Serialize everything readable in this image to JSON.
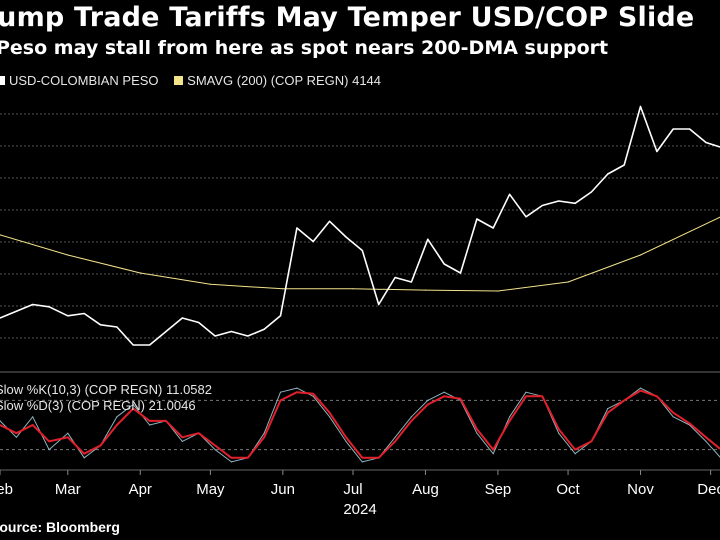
{
  "title": "Trump Trade Tariffs May Temper USD/COP Slide",
  "subtitle": "Peso may stall from here as spot nears 200-DMA support",
  "source": "Source: Bloomberg",
  "colors": {
    "price": "#ffffff",
    "sma": "#f3e38a",
    "k": "#8fb3bd",
    "d": "#e2202c",
    "grid": "#555555"
  },
  "chart_data": [
    {
      "type": "line",
      "legend": [
        {
          "label": "USD-COLOMBIAN PESO",
          "color": "#ffffff"
        },
        {
          "label": "SMAVG (200) (COP REGN) 4144",
          "color": "#f3e38a"
        }
      ],
      "x_unit": "date",
      "x_range": [
        "2024-02-01",
        "2024-12-05"
      ],
      "series": [
        {
          "name": "USD-COLOMBIAN PESO",
          "x": [
            "2024-02-01",
            "2024-02-08",
            "2024-02-15",
            "2024-02-22",
            "2024-03-01",
            "2024-03-08",
            "2024-03-15",
            "2024-03-22",
            "2024-03-29",
            "2024-04-05",
            "2024-04-12",
            "2024-04-19",
            "2024-04-26",
            "2024-05-03",
            "2024-05-10",
            "2024-05-17",
            "2024-05-24",
            "2024-05-31",
            "2024-06-07",
            "2024-06-14",
            "2024-06-21",
            "2024-06-28",
            "2024-07-05",
            "2024-07-12",
            "2024-07-19",
            "2024-07-26",
            "2024-08-02",
            "2024-08-09",
            "2024-08-16",
            "2024-08-23",
            "2024-08-30",
            "2024-09-06",
            "2024-09-13",
            "2024-09-20",
            "2024-09-27",
            "2024-10-04",
            "2024-10-11",
            "2024-10-18",
            "2024-10-25",
            "2024-11-01",
            "2024-11-08",
            "2024-11-15",
            "2024-11-22",
            "2024-11-29",
            "2024-12-05"
          ],
          "values": [
            3920,
            3935,
            3950,
            3945,
            3925,
            3930,
            3905,
            3900,
            3860,
            3860,
            3890,
            3920,
            3910,
            3880,
            3890,
            3880,
            3895,
            3925,
            4120,
            4090,
            4135,
            4100,
            4070,
            3950,
            4010,
            4000,
            4095,
            4040,
            4020,
            4140,
            4120,
            4195,
            4145,
            4170,
            4180,
            4175,
            4200,
            4240,
            4260,
            4390,
            4290,
            4340,
            4340,
            4310,
            4300
          ]
        },
        {
          "name": "SMAVG (200) (COP REGN) 4144",
          "x": [
            "2024-02-01",
            "2024-03-01",
            "2024-04-01",
            "2024-05-01",
            "2024-06-01",
            "2024-07-01",
            "2024-08-01",
            "2024-09-01",
            "2024-10-01",
            "2024-11-01",
            "2024-12-05"
          ],
          "values": [
            4105,
            4060,
            4020,
            3995,
            3985,
            3985,
            3982,
            3980,
            4000,
            4060,
            4144
          ]
        }
      ]
    },
    {
      "type": "line",
      "legend": [
        {
          "label": "Slow %K(10,3) (COP REGN) 11.0582",
          "color": "#8fb3bd"
        },
        {
          "label": "Slow %D(3) (COP REGN) 21.0046",
          "color": "#e2202c"
        }
      ],
      "ylim": [
        0,
        100
      ],
      "reference_lines": [
        80,
        20
      ],
      "x_unit": "date",
      "x_range": [
        "2024-02-01",
        "2024-12-05"
      ],
      "series": [
        {
          "name": "Slow %K(10,3) (COP REGN) 11.0582",
          "x": [
            "2024-02-01",
            "2024-02-08",
            "2024-02-15",
            "2024-02-22",
            "2024-03-01",
            "2024-03-08",
            "2024-03-15",
            "2024-03-22",
            "2024-03-29",
            "2024-04-05",
            "2024-04-12",
            "2024-04-19",
            "2024-04-26",
            "2024-05-03",
            "2024-05-10",
            "2024-05-17",
            "2024-05-24",
            "2024-05-31",
            "2024-06-07",
            "2024-06-14",
            "2024-06-21",
            "2024-06-28",
            "2024-07-05",
            "2024-07-12",
            "2024-07-19",
            "2024-07-26",
            "2024-08-02",
            "2024-08-09",
            "2024-08-16",
            "2024-08-23",
            "2024-08-30",
            "2024-09-06",
            "2024-09-13",
            "2024-09-20",
            "2024-09-27",
            "2024-10-04",
            "2024-10-11",
            "2024-10-18",
            "2024-10-25",
            "2024-11-01",
            "2024-11-08",
            "2024-11-15",
            "2024-11-22",
            "2024-11-29",
            "2024-12-05"
          ],
          "values": [
            55,
            35,
            60,
            20,
            40,
            10,
            25,
            60,
            75,
            50,
            55,
            30,
            40,
            20,
            5,
            10,
            40,
            90,
            95,
            85,
            60,
            30,
            5,
            10,
            35,
            60,
            80,
            90,
            80,
            40,
            15,
            60,
            90,
            85,
            40,
            15,
            30,
            70,
            80,
            95,
            85,
            60,
            50,
            30,
            11
          ]
        },
        {
          "name": "Slow %D(3) (COP REGN) 21.0046",
          "x": [
            "2024-02-01",
            "2024-02-08",
            "2024-02-15",
            "2024-02-22",
            "2024-03-01",
            "2024-03-08",
            "2024-03-15",
            "2024-03-22",
            "2024-03-29",
            "2024-04-05",
            "2024-04-12",
            "2024-04-19",
            "2024-04-26",
            "2024-05-03",
            "2024-05-10",
            "2024-05-17",
            "2024-05-24",
            "2024-05-31",
            "2024-06-07",
            "2024-06-14",
            "2024-06-21",
            "2024-06-28",
            "2024-07-05",
            "2024-07-12",
            "2024-07-19",
            "2024-07-26",
            "2024-08-02",
            "2024-08-09",
            "2024-08-16",
            "2024-08-23",
            "2024-08-30",
            "2024-09-06",
            "2024-09-13",
            "2024-09-20",
            "2024-09-27",
            "2024-10-04",
            "2024-10-11",
            "2024-10-18",
            "2024-10-25",
            "2024-11-01",
            "2024-11-08",
            "2024-11-15",
            "2024-11-22",
            "2024-11-29",
            "2024-12-05"
          ],
          "values": [
            50,
            40,
            50,
            30,
            35,
            15,
            25,
            50,
            70,
            55,
            55,
            35,
            40,
            25,
            10,
            10,
            35,
            80,
            90,
            88,
            65,
            35,
            10,
            10,
            30,
            55,
            75,
            85,
            82,
            45,
            20,
            55,
            85,
            85,
            45,
            20,
            30,
            65,
            80,
            92,
            85,
            65,
            52,
            35,
            21
          ]
        }
      ]
    }
  ],
  "x_axis": {
    "months": [
      {
        "label": "Feb",
        "date": "2024-02-01"
      },
      {
        "label": "Mar",
        "date": "2024-03-01"
      },
      {
        "label": "Apr",
        "date": "2024-04-01"
      },
      {
        "label": "May",
        "date": "2024-05-01"
      },
      {
        "label": "Jun",
        "date": "2024-06-01"
      },
      {
        "label": "Jul",
        "date": "2024-07-01"
      },
      {
        "label": "Aug",
        "date": "2024-08-01"
      },
      {
        "label": "Sep",
        "date": "2024-09-01"
      },
      {
        "label": "Oct",
        "date": "2024-10-01"
      },
      {
        "label": "Nov",
        "date": "2024-11-01"
      },
      {
        "label": "Dec",
        "date": "2024-12-01"
      }
    ],
    "year": "2024"
  }
}
